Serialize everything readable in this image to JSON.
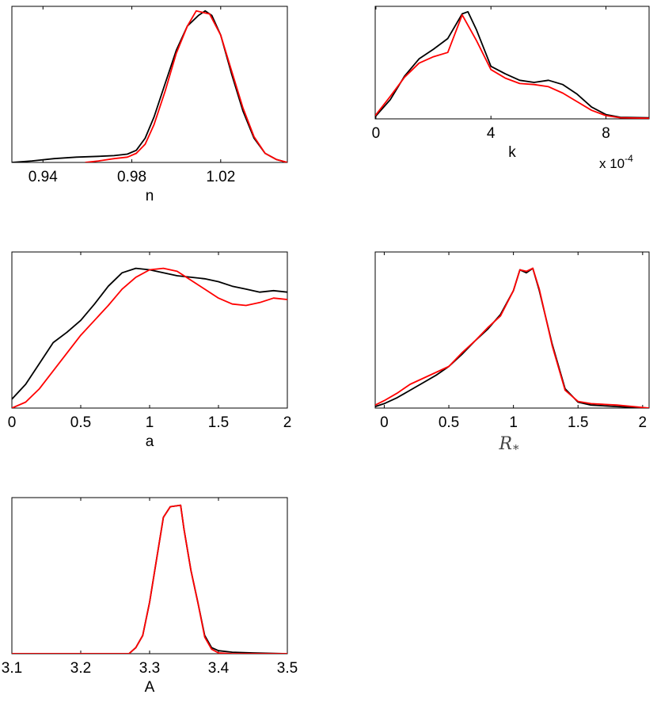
{
  "chart_data": [
    {
      "type": "line",
      "xlabel": "n",
      "xlim": [
        0.926,
        1.05
      ],
      "ylim": [
        0,
        1.03
      ],
      "xticks": [
        0.94,
        0.98,
        1.02
      ],
      "xtick_labels": [
        "0.94",
        "0.98",
        "1.02"
      ],
      "series": [
        {
          "color": "#000000",
          "x": [
            0.926,
            0.935,
            0.945,
            0.955,
            0.965,
            0.972,
            0.978,
            0.982,
            0.986,
            0.99,
            0.995,
            1.0,
            1.005,
            1.01,
            1.013,
            1.016,
            1.02,
            1.025,
            1.03,
            1.035,
            1.04,
            1.045,
            1.05
          ],
          "y": [
            0.0,
            0.01,
            0.025,
            0.035,
            0.04,
            0.045,
            0.055,
            0.08,
            0.16,
            0.3,
            0.52,
            0.74,
            0.9,
            0.97,
            1.0,
            0.97,
            0.84,
            0.58,
            0.34,
            0.16,
            0.06,
            0.02,
            0.0
          ]
        },
        {
          "color": "#ff0000",
          "x": [
            0.959,
            0.965,
            0.972,
            0.978,
            0.982,
            0.986,
            0.99,
            0.995,
            1.0,
            1.005,
            1.009,
            1.012,
            1.015,
            1.02,
            1.025,
            1.03,
            1.035,
            1.04,
            1.045,
            1.05
          ],
          "y": [
            0.0,
            0.01,
            0.025,
            0.035,
            0.06,
            0.12,
            0.25,
            0.47,
            0.72,
            0.9,
            1.0,
            0.99,
            0.98,
            0.84,
            0.6,
            0.36,
            0.17,
            0.06,
            0.02,
            0.0
          ]
        }
      ]
    },
    {
      "type": "line",
      "xlabel": "k",
      "x_exponent_label": "x 10",
      "x_exponent": "-4",
      "xlim": [
        -2.5e-06,
        0.00095
      ],
      "ylim": [
        0,
        1.05
      ],
      "xticks": [
        0,
        0.0004,
        0.0008
      ],
      "xtick_labels": [
        "0",
        "4",
        "8"
      ],
      "series": [
        {
          "color": "#000000",
          "x": [
            -2.5e-06,
            5e-05,
            0.0001,
            0.00015,
            0.0002,
            0.00025,
            0.0003,
            0.00032,
            0.00035,
            0.0004,
            0.00045,
            0.0005,
            0.00055,
            0.0006,
            0.00065,
            0.0007,
            0.00075,
            0.0008,
            0.00085,
            0.00095
          ],
          "y": [
            0.02,
            0.18,
            0.4,
            0.56,
            0.65,
            0.75,
            0.98,
            1.0,
            0.83,
            0.49,
            0.42,
            0.36,
            0.34,
            0.36,
            0.32,
            0.23,
            0.11,
            0.04,
            0.015,
            0.01
          ]
        },
        {
          "color": "#ff0000",
          "x": [
            -2.5e-06,
            5e-05,
            0.0001,
            0.00015,
            0.0002,
            0.00025,
            0.0003,
            0.00035,
            0.0004,
            0.00045,
            0.0005,
            0.00055,
            0.0006,
            0.00065,
            0.0007,
            0.00075,
            0.0008,
            0.00085,
            0.00095
          ],
          "y": [
            0.03,
            0.21,
            0.39,
            0.52,
            0.58,
            0.62,
            0.97,
            0.73,
            0.46,
            0.38,
            0.33,
            0.32,
            0.3,
            0.24,
            0.16,
            0.08,
            0.03,
            0.01,
            0.005
          ]
        }
      ]
    },
    {
      "type": "line",
      "xlabel": "a",
      "xlim": [
        0,
        2
      ],
      "ylim": [
        0,
        1.05
      ],
      "xticks": [
        0,
        0.5,
        1,
        1.5,
        2
      ],
      "xtick_labels": [
        "0",
        "0.5",
        "1",
        "1.5",
        "2"
      ],
      "series": [
        {
          "color": "#000000",
          "x": [
            0,
            0.1,
            0.2,
            0.3,
            0.4,
            0.5,
            0.6,
            0.7,
            0.8,
            0.9,
            1.0,
            1.1,
            1.2,
            1.3,
            1.4,
            1.5,
            1.6,
            1.7,
            1.8,
            1.9,
            2.0
          ],
          "y": [
            0.06,
            0.16,
            0.3,
            0.44,
            0.51,
            0.59,
            0.7,
            0.82,
            0.91,
            0.94,
            0.93,
            0.91,
            0.89,
            0.88,
            0.87,
            0.85,
            0.82,
            0.8,
            0.78,
            0.79,
            0.78
          ]
        },
        {
          "color": "#ff0000",
          "x": [
            0,
            0.1,
            0.2,
            0.3,
            0.4,
            0.5,
            0.6,
            0.7,
            0.8,
            0.9,
            1.0,
            1.1,
            1.2,
            1.3,
            1.4,
            1.5,
            1.6,
            1.7,
            1.8,
            1.9,
            2.0
          ],
          "y": [
            0.0,
            0.04,
            0.13,
            0.25,
            0.37,
            0.49,
            0.59,
            0.69,
            0.8,
            0.88,
            0.93,
            0.94,
            0.92,
            0.86,
            0.8,
            0.74,
            0.7,
            0.69,
            0.71,
            0.74,
            0.73
          ]
        }
      ]
    },
    {
      "type": "line",
      "xlabel": "R*",
      "xlabel_main": "R",
      "xlabel_sub": "*",
      "xlim": [
        -0.07,
        2.05
      ],
      "ylim": [
        0,
        1.05
      ],
      "xticks": [
        0,
        0.5,
        1,
        1.5,
        2
      ],
      "xtick_labels": [
        "0",
        "0.5",
        "1",
        "1.5",
        "2"
      ],
      "series": [
        {
          "color": "#000000",
          "x": [
            -0.07,
            0.0,
            0.1,
            0.2,
            0.3,
            0.4,
            0.5,
            0.6,
            0.7,
            0.8,
            0.9,
            1.0,
            1.05,
            1.1,
            1.15,
            1.2,
            1.3,
            1.4,
            1.5,
            1.6,
            1.8,
            2.05
          ],
          "y": [
            0.01,
            0.03,
            0.07,
            0.12,
            0.17,
            0.22,
            0.28,
            0.36,
            0.45,
            0.53,
            0.63,
            0.79,
            0.93,
            0.91,
            0.94,
            0.79,
            0.43,
            0.13,
            0.04,
            0.02,
            0.01,
            0.0
          ]
        },
        {
          "color": "#ff0000",
          "x": [
            -0.07,
            0.0,
            0.1,
            0.2,
            0.3,
            0.4,
            0.5,
            0.6,
            0.7,
            0.8,
            0.9,
            1.0,
            1.05,
            1.1,
            1.15,
            1.2,
            1.3,
            1.4,
            1.5,
            1.6,
            1.8,
            2.05
          ],
          "y": [
            0.02,
            0.05,
            0.1,
            0.16,
            0.2,
            0.24,
            0.28,
            0.37,
            0.45,
            0.54,
            0.62,
            0.79,
            0.93,
            0.92,
            0.94,
            0.8,
            0.42,
            0.12,
            0.045,
            0.03,
            0.02,
            0.0
          ]
        }
      ]
    },
    {
      "type": "line",
      "xlabel": "A",
      "xlim": [
        3.1,
        3.5
      ],
      "ylim": [
        0,
        1.03
      ],
      "xticks": [
        3.1,
        3.2,
        3.3,
        3.4,
        3.5
      ],
      "xtick_labels": [
        "3.1",
        "3.2",
        "3.3",
        "3.4",
        "3.5"
      ],
      "series": [
        {
          "color": "#000000",
          "x": [
            3.1,
            3.2,
            3.27,
            3.28,
            3.29,
            3.3,
            3.31,
            3.32,
            3.33,
            3.345,
            3.35,
            3.36,
            3.37,
            3.38,
            3.39,
            3.4,
            3.42,
            3.45,
            3.5
          ],
          "y": [
            0.0,
            0.0,
            0.0,
            0.04,
            0.12,
            0.34,
            0.62,
            0.9,
            0.97,
            0.98,
            0.82,
            0.55,
            0.34,
            0.12,
            0.04,
            0.02,
            0.01,
            0.005,
            0.0
          ]
        },
        {
          "color": "#ff0000",
          "x": [
            3.1,
            3.2,
            3.27,
            3.28,
            3.29,
            3.3,
            3.31,
            3.32,
            3.33,
            3.345,
            3.35,
            3.36,
            3.37,
            3.38,
            3.39,
            3.4,
            3.42,
            3.45,
            3.5
          ],
          "y": [
            0.0,
            0.0,
            0.0,
            0.04,
            0.12,
            0.34,
            0.62,
            0.9,
            0.97,
            0.98,
            0.82,
            0.55,
            0.34,
            0.11,
            0.03,
            0.005,
            0.0,
            0.0,
            0.0
          ]
        }
      ]
    }
  ]
}
